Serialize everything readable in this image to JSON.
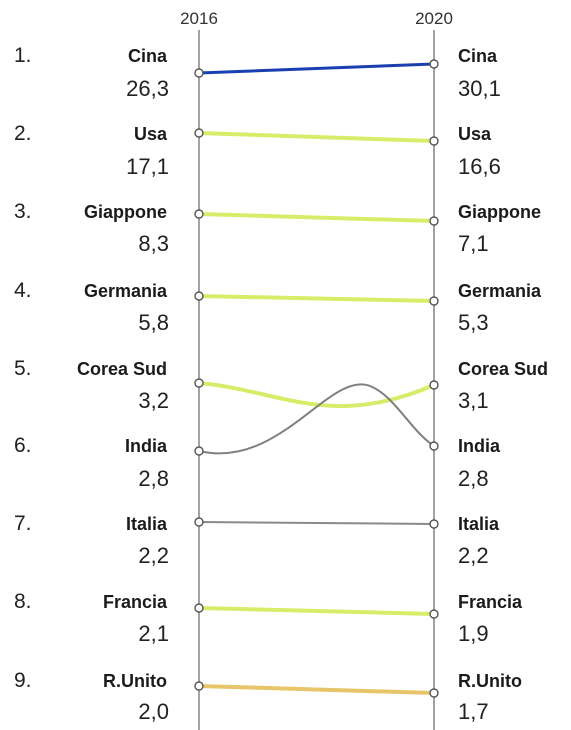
{
  "chart_data": {
    "type": "slope",
    "x": [
      "2016",
      "2020"
    ],
    "series": [
      {
        "rank": "1.",
        "label_2016": "Cina",
        "value_2016": "26,3",
        "label_2020": "Cina",
        "value_2020": "30,1",
        "color": "#1a3fb0",
        "dark_label": true
      },
      {
        "rank": "2.",
        "label_2016": "Usa",
        "value_2016": "17,1",
        "label_2020": "Usa",
        "value_2020": "16,6",
        "color": "#d8ec6a",
        "dark_label": false
      },
      {
        "rank": "3.",
        "label_2016": "Giappone",
        "value_2016": "8,3",
        "label_2020": "Giappone",
        "value_2020": "7,1",
        "color": "#d8ec6a",
        "dark_label": false
      },
      {
        "rank": "4.",
        "label_2016": "Germania",
        "value_2016": "5,8",
        "label_2020": "Germania",
        "value_2020": "5,3",
        "color": "#d8ec6a",
        "dark_label": false
      },
      {
        "rank": "5.",
        "label_2016": "Corea Sud",
        "value_2016": "3,2",
        "label_2020": "Corea Sud",
        "value_2020": "3,1",
        "color": "#d8ec6a",
        "dark_label": false
      },
      {
        "rank": "6.",
        "label_2016": "India",
        "value_2016": "2,8",
        "label_2020": "India",
        "value_2020": "2,8",
        "color": "#808080",
        "dark_label": true
      },
      {
        "rank": "7.",
        "label_2016": "Italia",
        "value_2016": "2,2",
        "label_2020": "Italia",
        "value_2020": "2,2",
        "color": "#8a8a8a",
        "dark_label": false
      },
      {
        "rank": "8.",
        "label_2016": "Francia",
        "value_2016": "2,1",
        "label_2020": "Francia",
        "value_2020": "1,9",
        "color": "#d8ec6a",
        "dark_label": false
      },
      {
        "rank": "9.",
        "label_2016": "R.Unito",
        "value_2016": "2,0",
        "label_2020": "R.Unito",
        "value_2020": "1,7",
        "color": "#e8c56a",
        "dark_label": false
      }
    ]
  }
}
